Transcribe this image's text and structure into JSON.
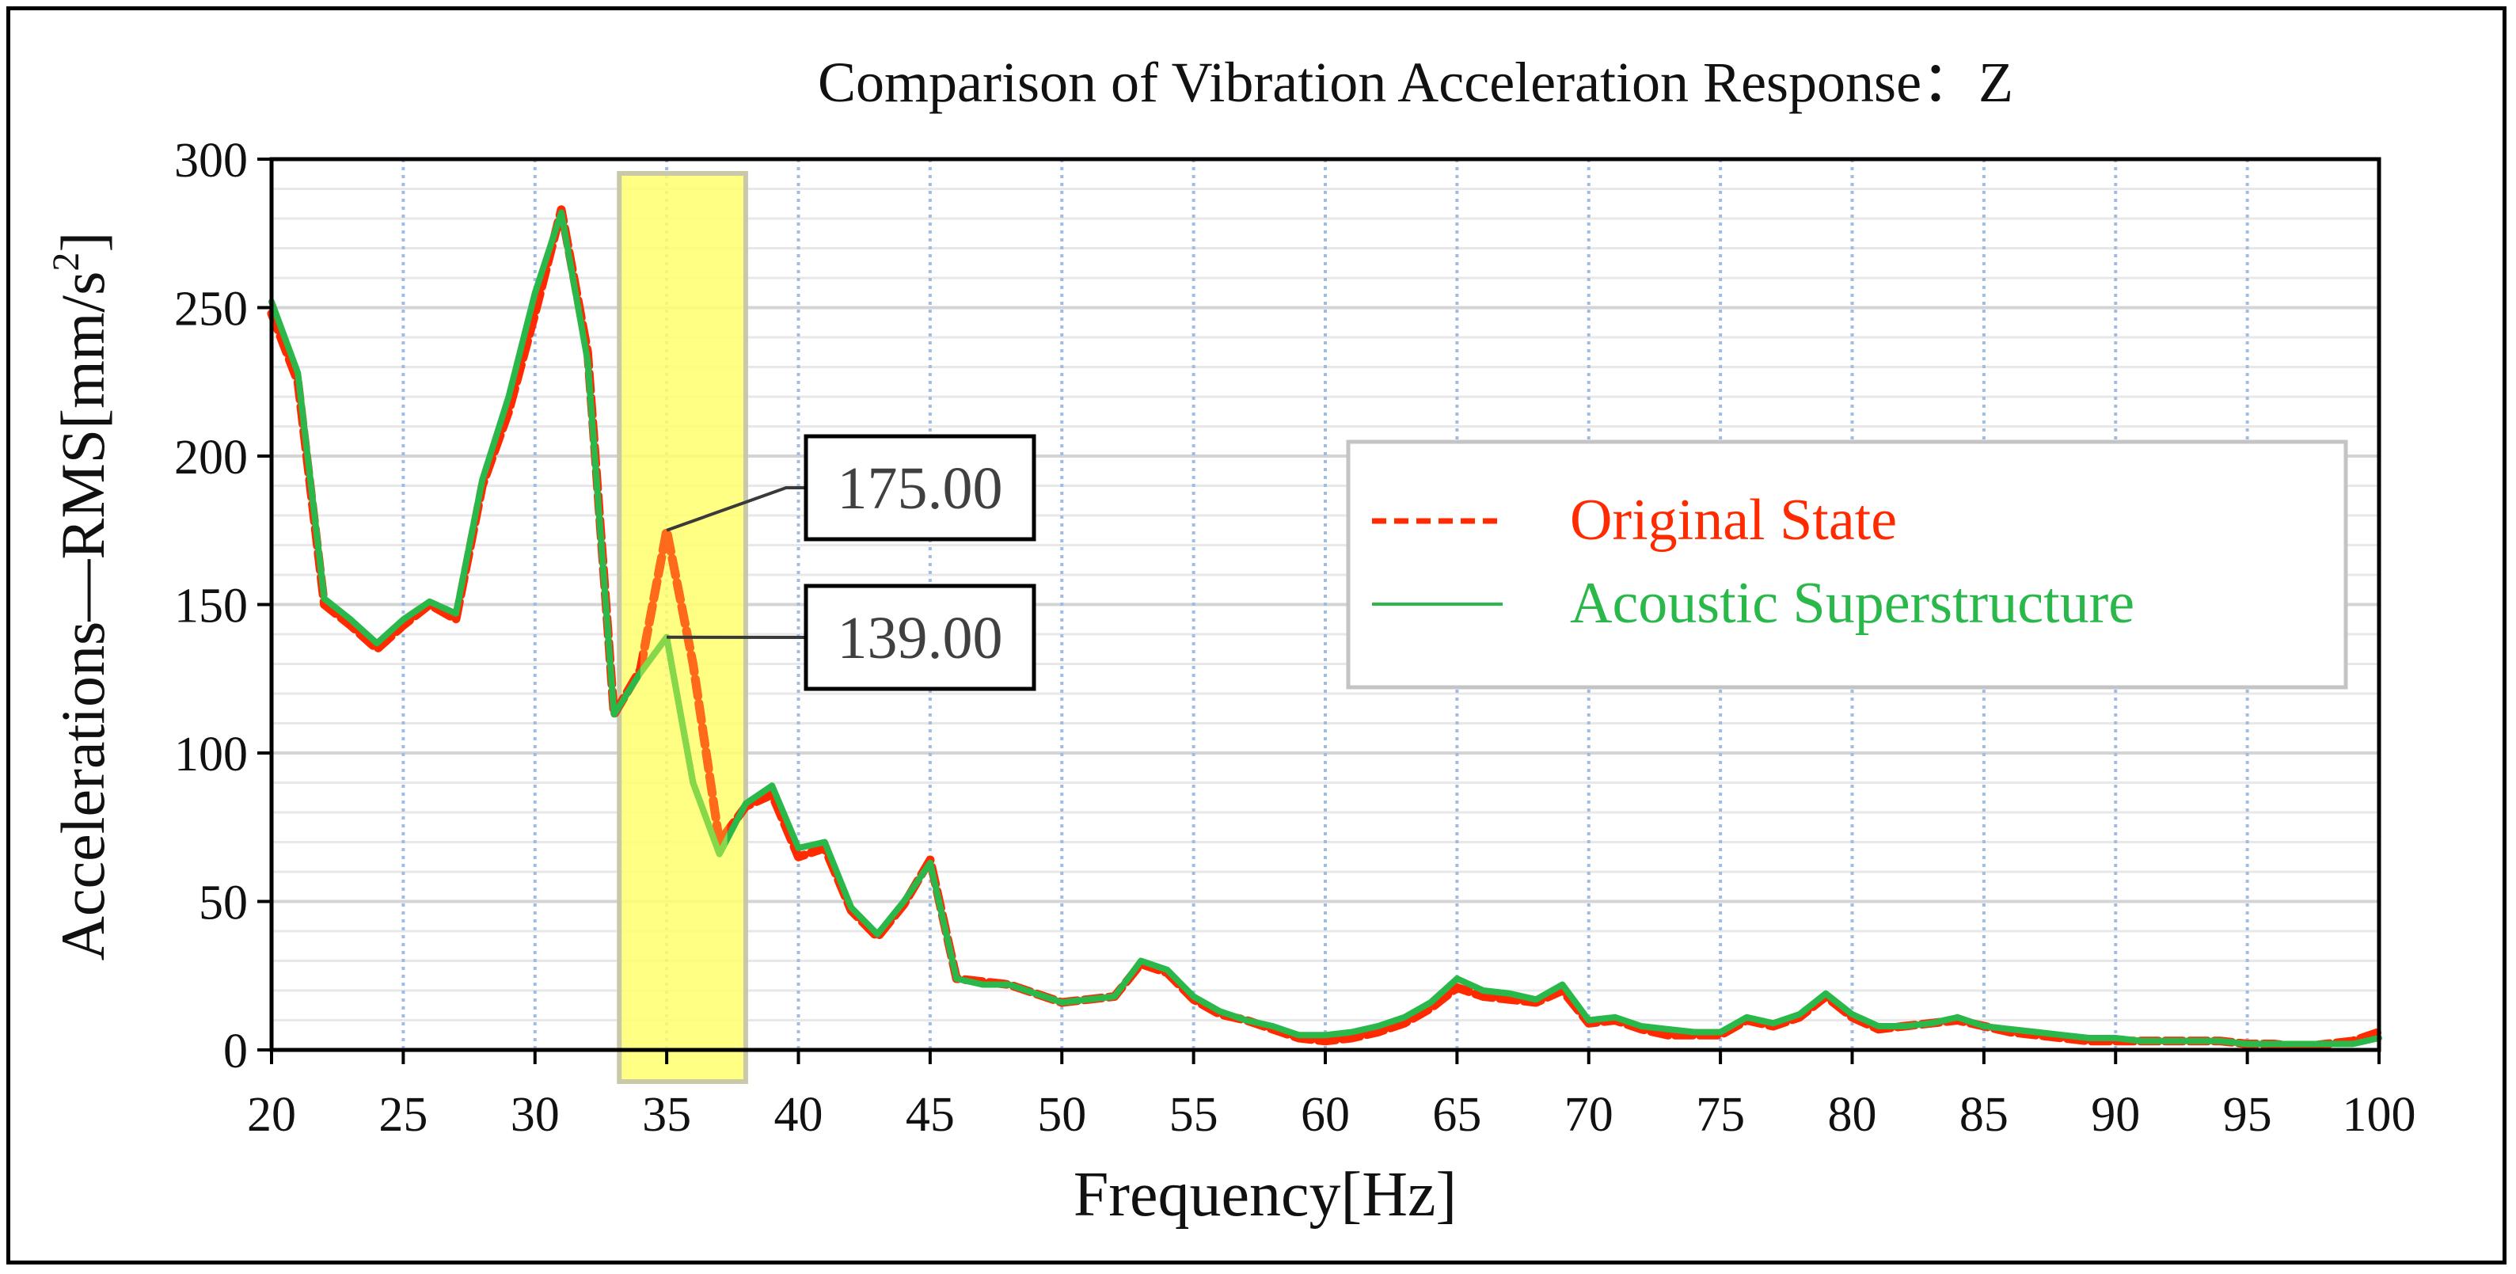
{
  "chart_data": {
    "type": "line",
    "title": "Comparison of Vibration Acceleration Response：Z",
    "xlabel": "Frequency[Hz]",
    "ylabel": "Accelerations—RMS[mm/s",
    "ylabel_sup": "2",
    "ylabel_close": "]",
    "xlim": [
      20,
      100
    ],
    "ylim": [
      0,
      300
    ],
    "xticks": [
      "20",
      "25",
      "30",
      "35",
      "40",
      "45",
      "50",
      "55",
      "60",
      "65",
      "70",
      "75",
      "80",
      "85",
      "90",
      "95",
      "100"
    ],
    "yticks": [
      "0",
      "50",
      "100",
      "150",
      "200",
      "250",
      "300"
    ],
    "highlight_range": [
      33.2,
      38
    ],
    "colors": {
      "original": "#ff2a00",
      "original_highlight": "#ff6a1a",
      "acoustic": "#2ab84a",
      "acoustic_highlight": "#86d84a",
      "highlight_fill": "#ffff6e",
      "highlight_stroke": "#c9c9a9",
      "grid_major": "#d4d4d4",
      "grid_minor": "#e8e8e8",
      "grid_vertical": "#9fbce4"
    },
    "legend_position": "right",
    "series": [
      {
        "name": "Original State",
        "style": "dashed",
        "x": [
          20,
          21,
          22,
          23,
          24,
          25,
          26,
          27,
          28,
          29,
          30,
          31,
          32,
          33,
          34,
          35,
          36,
          37,
          38,
          39,
          40,
          41,
          42,
          43,
          44,
          45,
          46,
          47,
          48,
          49,
          50,
          51,
          52,
          53,
          54,
          55,
          56,
          57,
          58,
          59,
          60,
          61,
          62,
          63,
          64,
          65,
          66,
          67,
          68,
          69,
          70,
          71,
          72,
          73,
          74,
          75,
          76,
          77,
          78,
          79,
          80,
          81,
          82,
          83,
          84,
          85,
          86,
          87,
          88,
          89,
          90,
          91,
          92,
          93,
          94,
          95,
          96,
          97,
          98,
          99,
          100
        ],
        "values": [
          248,
          225,
          150,
          143,
          135,
          143,
          150,
          145,
          190,
          215,
          248,
          283,
          235,
          113,
          128,
          175,
          130,
          70,
          82,
          86,
          65,
          68,
          47,
          38,
          49,
          64,
          24,
          23,
          22,
          19,
          16,
          17,
          18,
          29,
          26,
          17,
          12,
          10,
          7,
          4,
          3,
          4,
          6,
          9,
          14,
          21,
          18,
          17,
          16,
          20,
          9,
          10,
          7,
          5,
          5,
          5,
          10,
          8,
          11,
          18,
          11,
          7,
          8,
          9,
          10,
          8,
          6,
          5,
          4,
          3,
          3,
          3,
          3,
          3,
          3,
          2,
          2,
          1,
          2,
          3,
          6
        ]
      },
      {
        "name": "Acoustic Superstructure",
        "style": "solid",
        "x": [
          20,
          21,
          22,
          23,
          24,
          25,
          26,
          27,
          28,
          29,
          30,
          31,
          32,
          33,
          34,
          35,
          36,
          37,
          38,
          39,
          40,
          41,
          42,
          43,
          44,
          45,
          46,
          47,
          48,
          49,
          50,
          51,
          52,
          53,
          54,
          55,
          56,
          57,
          58,
          59,
          60,
          61,
          62,
          63,
          64,
          65,
          66,
          67,
          68,
          69,
          70,
          71,
          72,
          73,
          74,
          75,
          76,
          77,
          78,
          79,
          80,
          81,
          82,
          83,
          84,
          85,
          86,
          87,
          88,
          89,
          90,
          91,
          92,
          93,
          94,
          95,
          96,
          97,
          98,
          99,
          100
        ],
        "values": [
          252,
          228,
          152,
          145,
          137,
          145,
          151,
          147,
          192,
          220,
          255,
          282,
          232,
          113,
          127,
          139,
          90,
          66,
          83,
          89,
          68,
          70,
          48,
          39,
          50,
          63,
          24,
          22,
          22,
          19,
          16,
          17,
          18,
          30,
          27,
          18,
          13,
          10,
          8,
          5,
          5,
          6,
          8,
          11,
          16,
          24,
          20,
          19,
          17,
          22,
          10,
          11,
          8,
          7,
          6,
          6,
          11,
          9,
          12,
          19,
          12,
          8,
          8,
          9,
          11,
          8,
          7,
          6,
          5,
          4,
          4,
          3,
          3,
          3,
          3,
          2,
          2,
          2,
          2,
          2,
          4
        ]
      }
    ],
    "annotations": [
      {
        "label": "175.00",
        "x": 35,
        "y": 175,
        "series": "Original State"
      },
      {
        "label": "139.00",
        "x": 35,
        "y": 139,
        "series": "Acoustic Superstructure"
      }
    ]
  }
}
